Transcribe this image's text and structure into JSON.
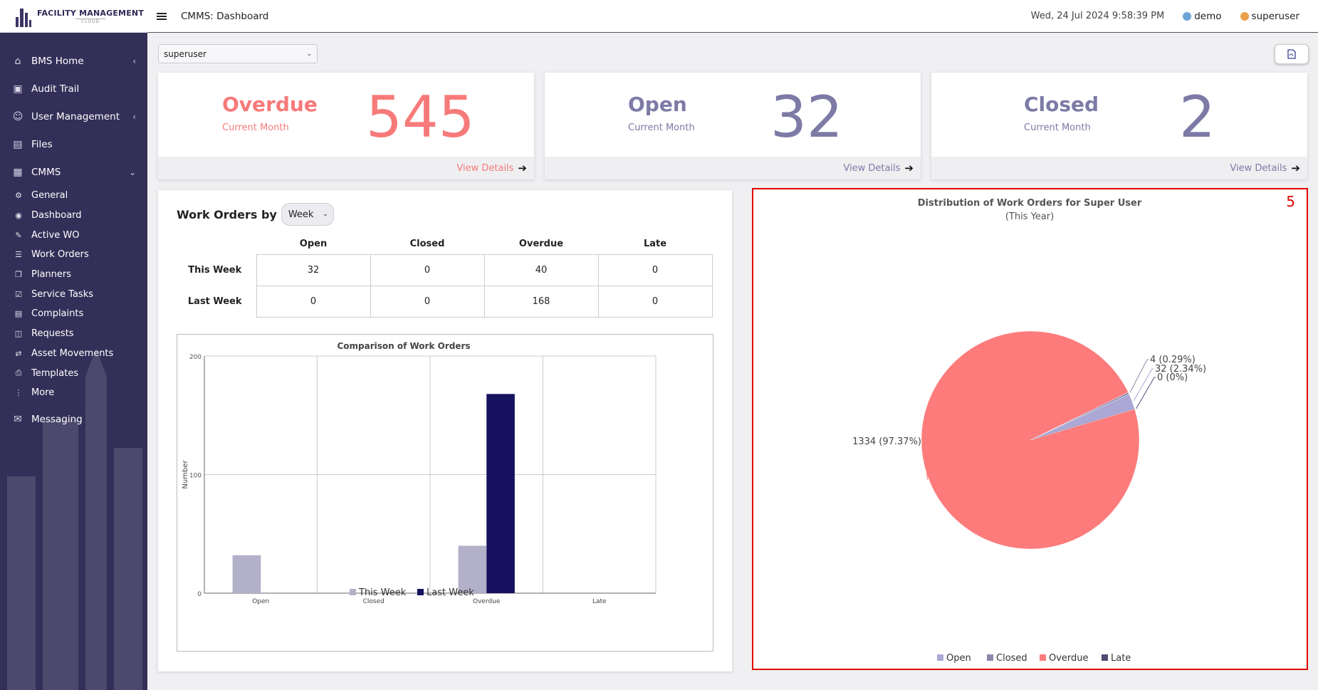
{
  "app": {
    "logo_title": "FACILITY MANAGEMENT",
    "logo_sub": "CLOUD"
  },
  "header": {
    "breadcrumb": "CMMS: Dashboard",
    "datetime": "Wed, 24 Jul 2024 9:58:39 PM",
    "site": "demo",
    "user": "superuser"
  },
  "sidebar": {
    "items": [
      {
        "label": "BMS Home",
        "icon": "bms-home-icon",
        "caret": "‹"
      },
      {
        "label": "Audit Trail",
        "icon": "audit-trail-icon",
        "caret": ""
      },
      {
        "label": "User Management",
        "icon": "users-icon",
        "caret": "‹"
      },
      {
        "label": "Files",
        "icon": "files-icon",
        "caret": ""
      },
      {
        "label": "CMMS",
        "icon": "cmms-icon",
        "caret": "⌄"
      }
    ],
    "sub_items": [
      {
        "label": "General",
        "icon": "gears-icon",
        "glyph": "⚙"
      },
      {
        "label": "Dashboard",
        "icon": "palette-icon",
        "glyph": "◉"
      },
      {
        "label": "Active WO",
        "icon": "wrench-icon",
        "glyph": "✎"
      },
      {
        "label": "Work Orders",
        "icon": "list-icon",
        "glyph": "☰"
      },
      {
        "label": "Planners",
        "icon": "copy-icon",
        "glyph": "❐"
      },
      {
        "label": "Service Tasks",
        "icon": "check-square-icon",
        "glyph": "☑"
      },
      {
        "label": "Complaints",
        "icon": "credit-card-icon",
        "glyph": "▤"
      },
      {
        "label": "Requests",
        "icon": "columns-icon",
        "glyph": "◫"
      },
      {
        "label": "Asset Movements",
        "icon": "exchange-icon",
        "glyph": "⇄"
      },
      {
        "label": "Templates",
        "icon": "file-pdf-icon",
        "glyph": "⎙"
      },
      {
        "label": "More",
        "icon": "more-vertical-icon",
        "glyph": "⋮"
      }
    ],
    "messaging": {
      "label": "Messaging",
      "icon": "messaging-icon"
    }
  },
  "toolbar": {
    "user_select": "superuser"
  },
  "cards": [
    {
      "label": "Overdue",
      "sub": "Current Month",
      "value": "545",
      "link": "View Details",
      "color": "#f77a7a"
    },
    {
      "label": "Open",
      "sub": "Current Month",
      "value": "32",
      "link": "View Details",
      "color": "#7d7aa6"
    },
    {
      "label": "Closed",
      "sub": "Current Month",
      "value": "2",
      "link": "View Details",
      "color": "#7d7aa6"
    }
  ],
  "work_orders": {
    "title": "Work Orders by",
    "period": "Week",
    "columns": [
      "Open",
      "Closed",
      "Overdue",
      "Late"
    ],
    "rows": [
      {
        "label": "This Week",
        "values": [
          "32",
          "0",
          "40",
          "0"
        ]
      },
      {
        "label": "Last Week",
        "values": [
          "0",
          "0",
          "168",
          "0"
        ]
      }
    ]
  },
  "chart_data": [
    {
      "type": "bar",
      "title": "Comparison of Work Orders",
      "ylabel": "Number",
      "xlabel": "",
      "categories": [
        "Open",
        "Closed",
        "Overdue",
        "Late"
      ],
      "ylim": [
        0,
        200
      ],
      "yticks": [
        0,
        100,
        200
      ],
      "series": [
        {
          "name": "This Week",
          "values": [
            32,
            0,
            40,
            0
          ],
          "color": "#b3b0ca"
        },
        {
          "name": "Last Week",
          "values": [
            0,
            0,
            168,
            0
          ],
          "color": "#17125f"
        }
      ],
      "legend": "bottom"
    },
    {
      "type": "pie",
      "title": "Distribution of Work Orders for Super User",
      "subtitle": "(This Year)",
      "slices": [
        {
          "name": "Open",
          "value": 32,
          "label": "32 (2.34%)",
          "color": "#aba8d6"
        },
        {
          "name": "Closed",
          "value": 4,
          "label": "4 (0.29%)",
          "color": "#8c89ad"
        },
        {
          "name": "Overdue",
          "value": 1334,
          "label": "1334 (97.37%)",
          "color": "#fd7b7b"
        },
        {
          "name": "Late",
          "value": 0,
          "label": "0 (0%)",
          "color": "#4f4b74"
        }
      ],
      "legend": "bottom"
    }
  ],
  "annotation": {
    "number": "5"
  }
}
